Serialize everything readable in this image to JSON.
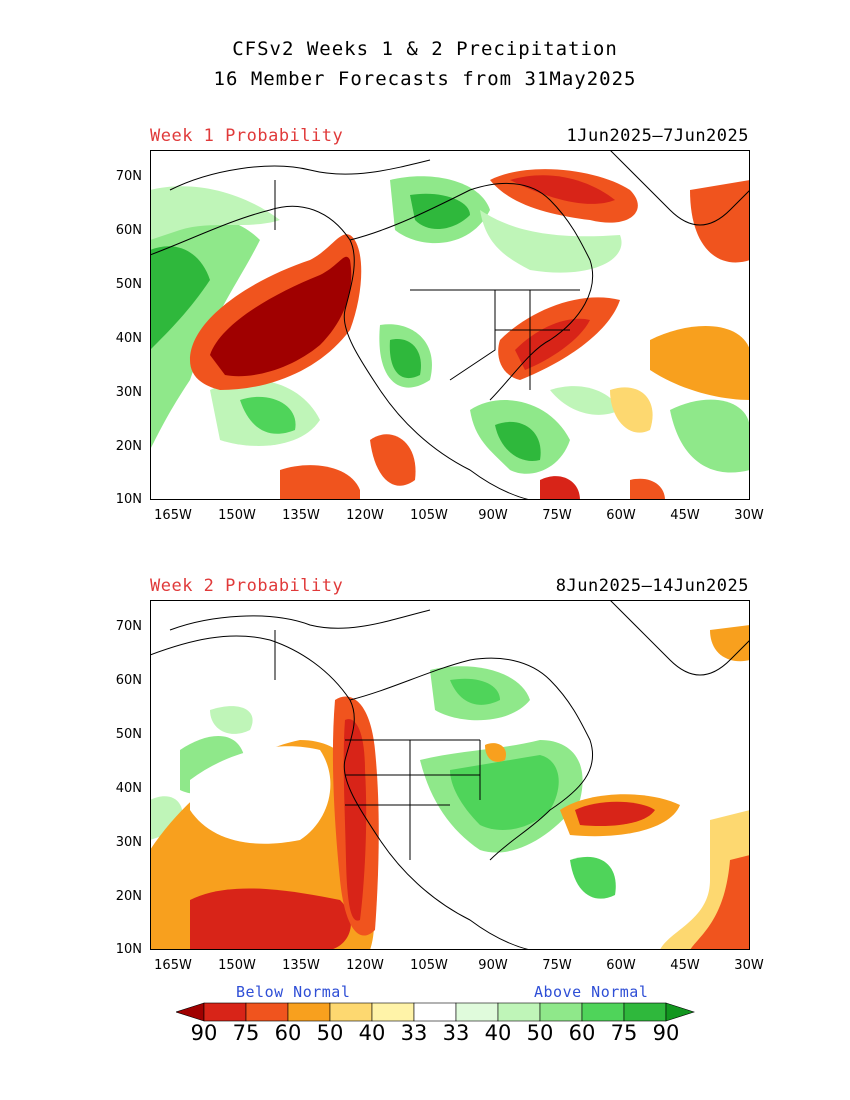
{
  "title": {
    "line1": "CFSv2 Weeks 1 & 2 Precipitation",
    "line2": "16 Member Forecasts from 31May2025"
  },
  "panels": [
    {
      "label": "Week 1 Probability",
      "dates": "1Jun2025—7Jun2025"
    },
    {
      "label": "Week 2 Probability",
      "dates": "8Jun2025—14Jun2025"
    }
  ],
  "axes": {
    "lat_ticks": [
      "70N",
      "60N",
      "50N",
      "40N",
      "30N",
      "20N",
      "10N"
    ],
    "lon_ticks": [
      "165W",
      "150W",
      "135W",
      "120W",
      "105W",
      "90W",
      "75W",
      "60W",
      "45W",
      "30W"
    ],
    "lat_range": [
      10,
      75
    ],
    "lon_range": [
      -170,
      -30
    ]
  },
  "legend": {
    "below": "Below Normal",
    "above": "Above Normal",
    "labels": [
      "90",
      "75",
      "60",
      "50",
      "40",
      "33",
      "33",
      "40",
      "50",
      "60",
      "75",
      "90"
    ],
    "colors": [
      "#a00000",
      "#d82418",
      "#f0541e",
      "#f8a01e",
      "#fdd870",
      "#fff3a8",
      "#ffffff",
      "#e0fbdc",
      "#bff5b8",
      "#8fe88a",
      "#4fd45a",
      "#2fb83c",
      "#12961f"
    ]
  }
}
